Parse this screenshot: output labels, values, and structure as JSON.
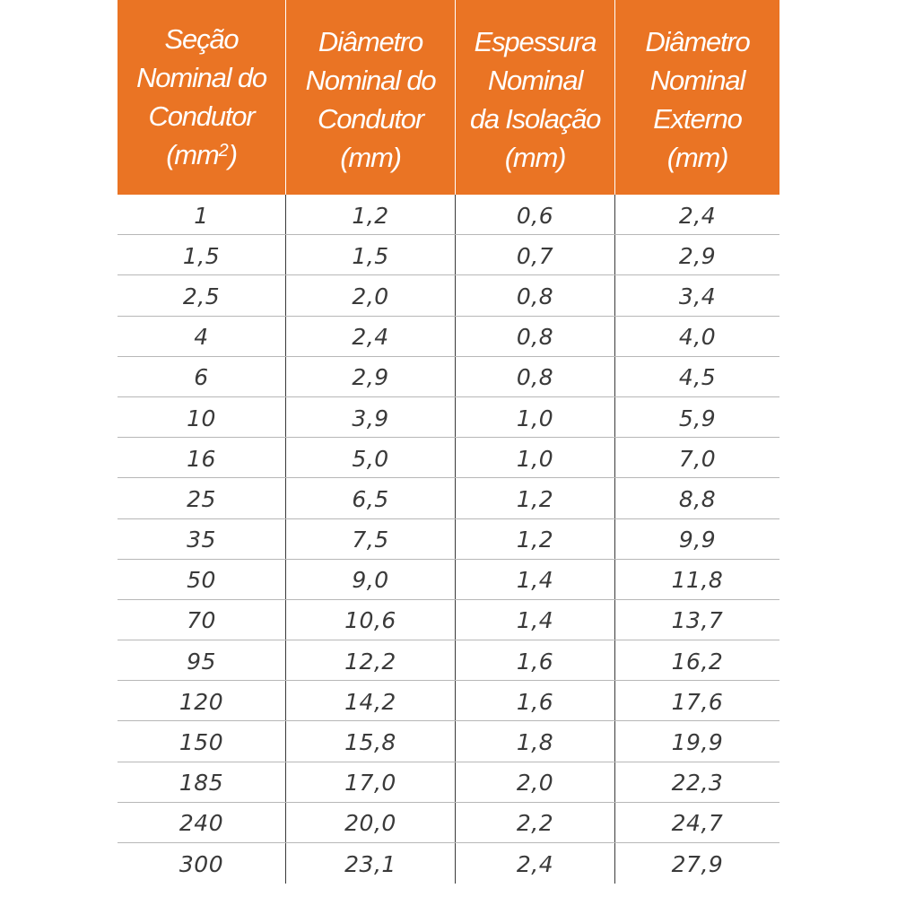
{
  "table": {
    "headers": [
      {
        "lines": [
          "Seção",
          "Nominal do",
          "Condutor"
        ],
        "unit_base": "(mm",
        "unit_sup": "2",
        "unit_close": ")"
      },
      {
        "lines": [
          "Diâmetro",
          "Nominal do",
          "Condutor",
          "(mm)"
        ]
      },
      {
        "lines": [
          "Espessura",
          "Nominal",
          "da Isolação",
          "(mm)"
        ]
      },
      {
        "lines": [
          "Diâmetro",
          "Nominal",
          "Externo",
          "(mm)"
        ]
      }
    ],
    "rows": [
      [
        "1",
        "1,2",
        "0,6",
        "2,4"
      ],
      [
        "1,5",
        "1,5",
        "0,7",
        "2,9"
      ],
      [
        "2,5",
        "2,0",
        "0,8",
        "3,4"
      ],
      [
        "4",
        "2,4",
        "0,8",
        "4,0"
      ],
      [
        "6",
        "2,9",
        "0,8",
        "4,5"
      ],
      [
        "10",
        "3,9",
        "1,0",
        "5,9"
      ],
      [
        "16",
        "5,0",
        "1,0",
        "7,0"
      ],
      [
        "25",
        "6,5",
        "1,2",
        "8,8"
      ],
      [
        "35",
        "7,5",
        "1,2",
        "9,9"
      ],
      [
        "50",
        "9,0",
        "1,4",
        "11,8"
      ],
      [
        "70",
        "10,6",
        "1,4",
        "13,7"
      ],
      [
        "95",
        "12,2",
        "1,6",
        "16,2"
      ],
      [
        "120",
        "14,2",
        "1,6",
        "17,6"
      ],
      [
        "150",
        "15,8",
        "1,8",
        "19,9"
      ],
      [
        "185",
        "17,0",
        "2,0",
        "22,3"
      ],
      [
        "240",
        "20,0",
        "2,2",
        "24,7"
      ],
      [
        "300",
        "23,1",
        "2,4",
        "27,9"
      ]
    ]
  },
  "colors": {
    "header_background": "#ea7424",
    "header_text": "#ffffff",
    "body_text": "#3a3a3a",
    "row_divider": "#b7b7b7"
  }
}
